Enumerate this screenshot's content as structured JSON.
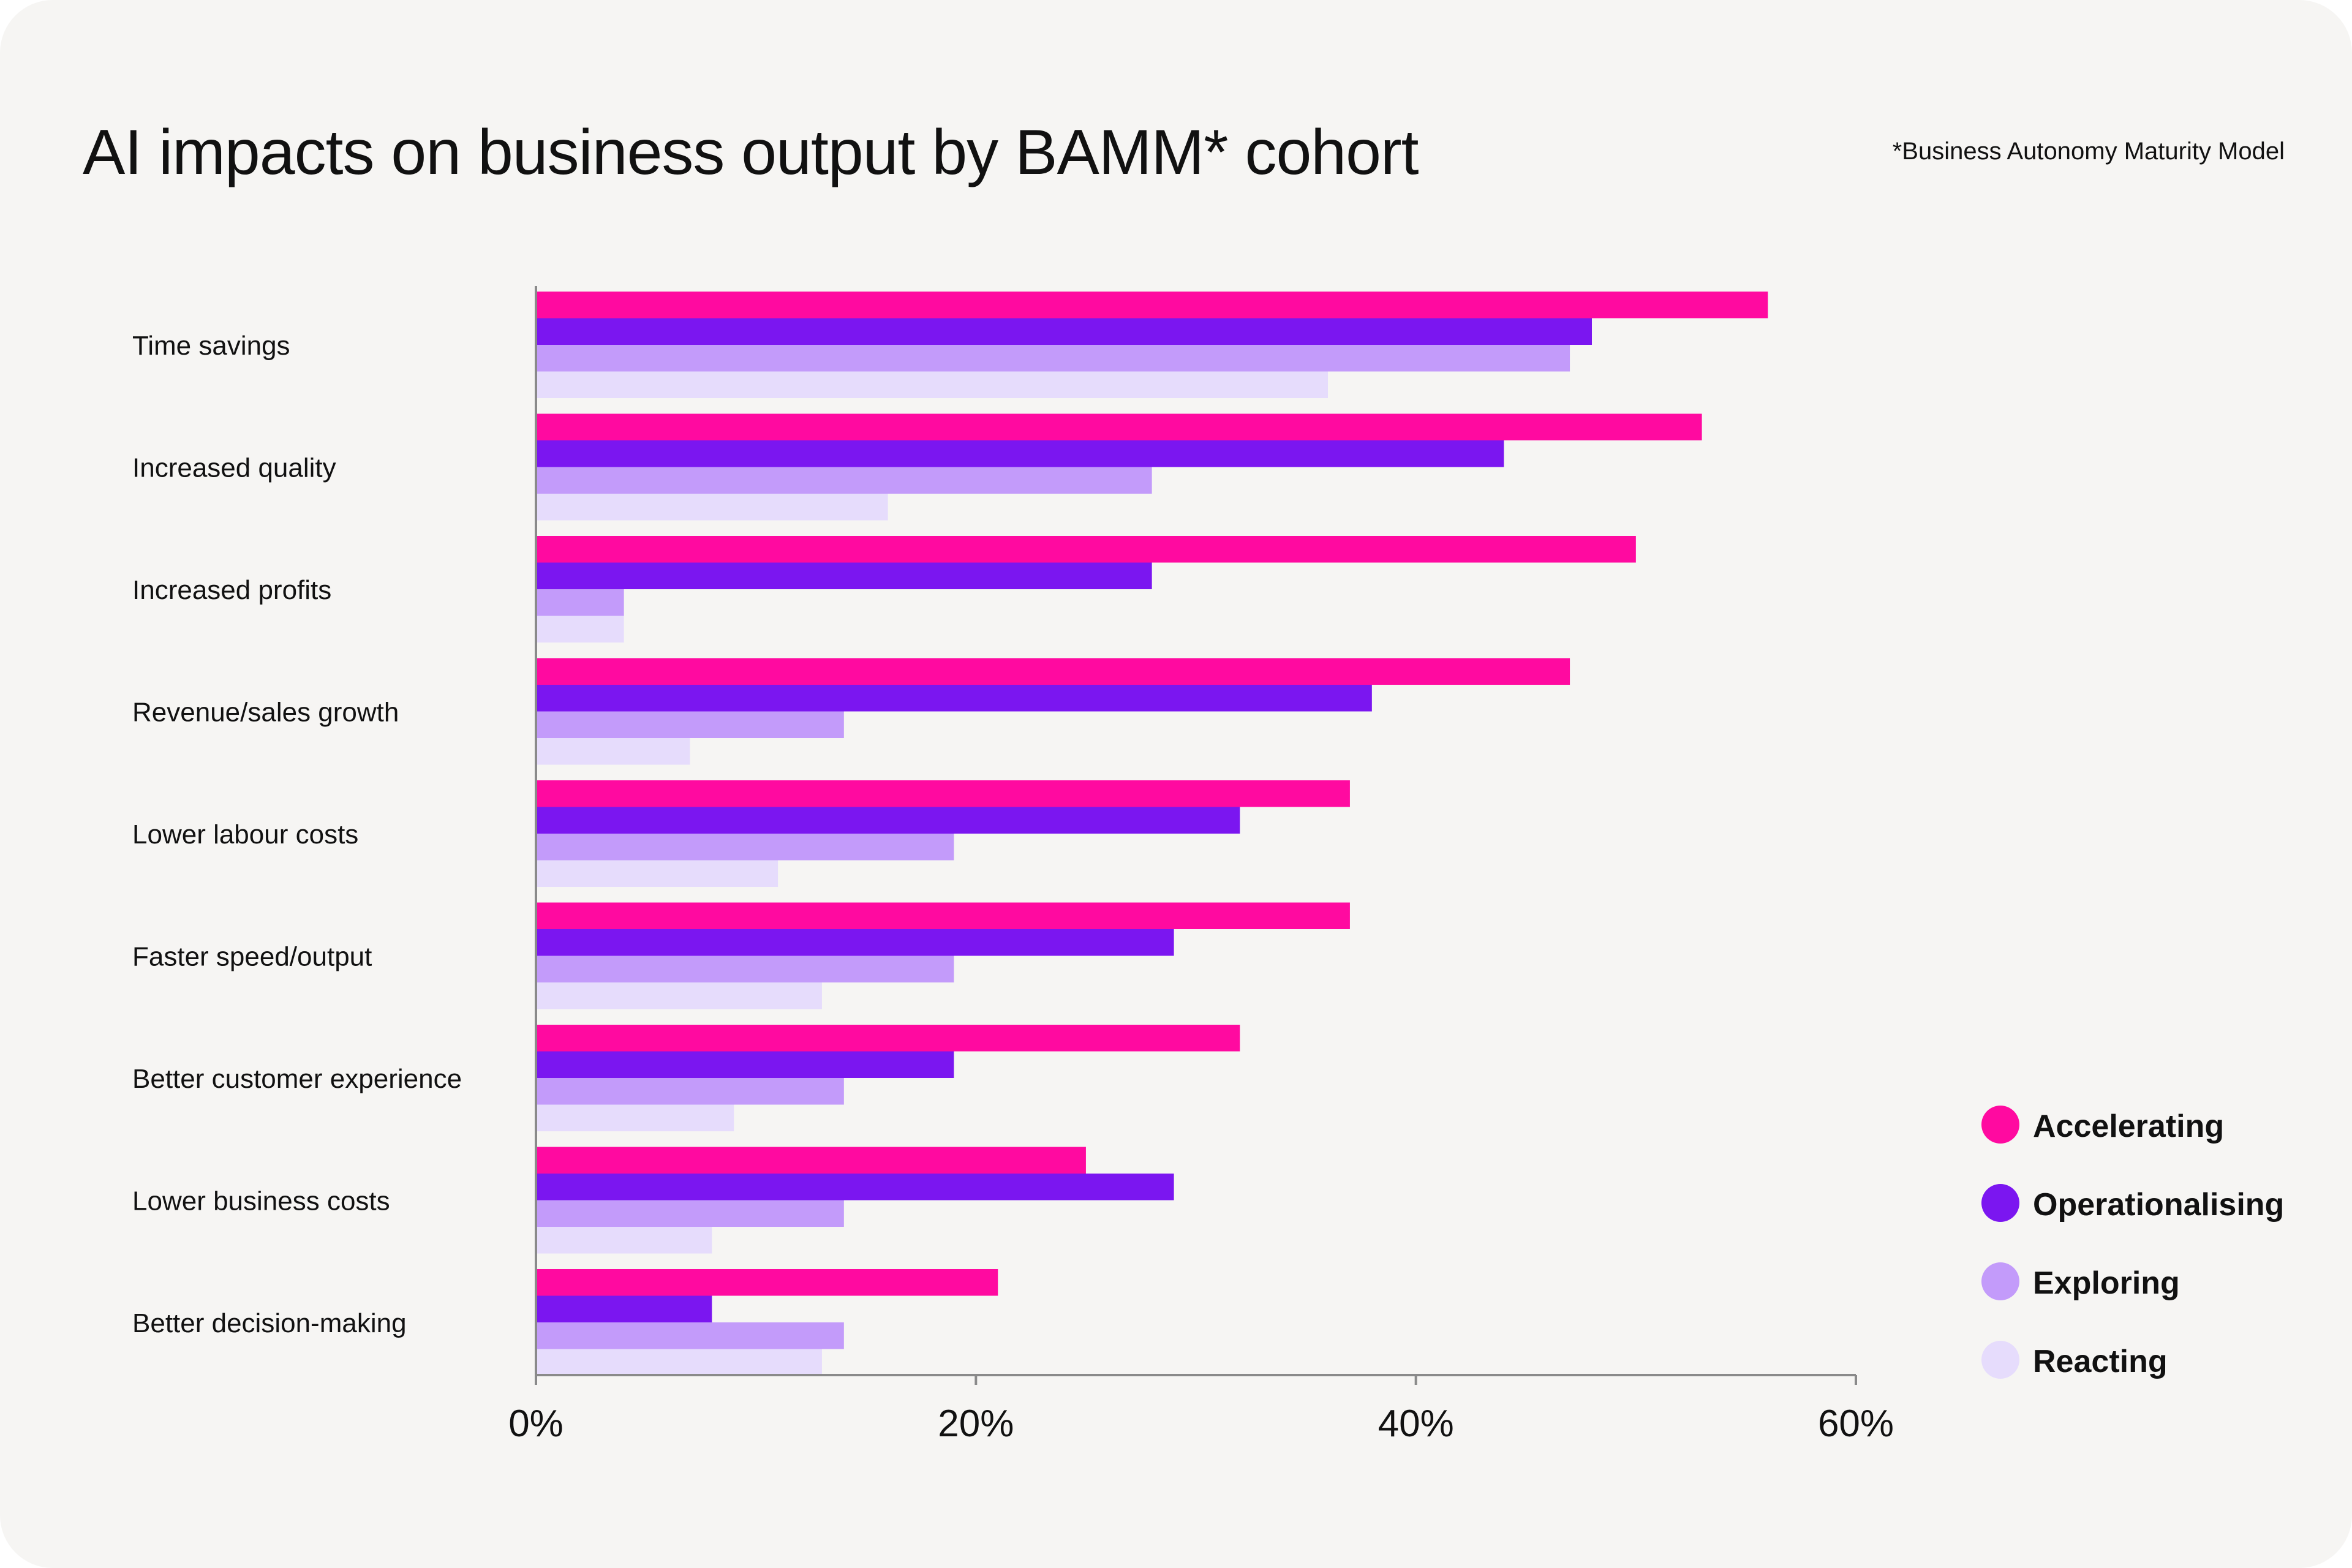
{
  "title": "AI impacts on business output by BAMM* cohort",
  "footnote": "*Business Autonomy Maturity Model",
  "colors": {
    "background": "#f6f5f3",
    "axis": "#8a8a8a",
    "text": "#111111"
  },
  "chart_data": {
    "type": "bar",
    "orientation": "horizontal",
    "title": "AI impacts on business output by BAMM* cohort",
    "categories": [
      "Time savings",
      "Increased quality",
      "Increased profits",
      "Revenue/sales growth",
      "Lower labour costs",
      "Faster speed/output",
      "Better customer experience",
      "Lower business costs",
      "Better decision-making"
    ],
    "series": [
      {
        "name": "Accelerating",
        "color": "#ff0aa0",
        "values": [
          56,
          53,
          50,
          47,
          37,
          37,
          32,
          25,
          21
        ]
      },
      {
        "name": "Operationalising",
        "color": "#7b16f0",
        "values": [
          48,
          44,
          28,
          38,
          32,
          29,
          19,
          29,
          8
        ]
      },
      {
        "name": "Exploring",
        "color": "#c39bfa",
        "values": [
          47,
          28,
          4,
          14,
          19,
          19,
          14,
          14,
          14
        ]
      },
      {
        "name": "Reacting",
        "color": "#e6dcfc",
        "values": [
          36,
          16,
          4,
          7,
          11,
          13,
          9,
          8,
          13
        ]
      }
    ],
    "xlim": [
      0,
      60
    ],
    "xticks": [
      0,
      20,
      40,
      60
    ],
    "xtick_labels": [
      "0%",
      "20%",
      "40%",
      "60%"
    ],
    "grid": false,
    "legend_position": "bottom-right"
  }
}
